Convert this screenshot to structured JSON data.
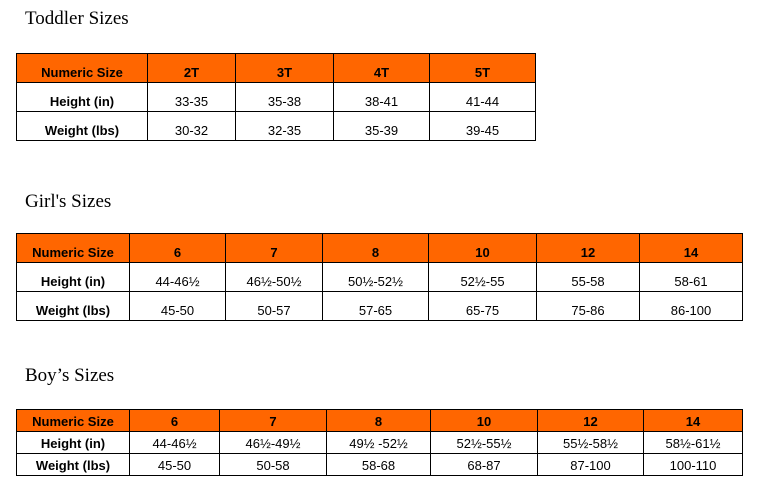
{
  "toddler": {
    "title": "Toddler Sizes",
    "header": [
      "Numeric Size",
      "2T",
      "3T",
      "4T",
      "5T"
    ],
    "height": [
      "Height (in)",
      "33-35",
      "35-38",
      "38-41",
      "41-44"
    ],
    "weight": [
      "Weight (lbs)",
      "30-32",
      "32-35",
      "35-39",
      "39-45"
    ]
  },
  "girls": {
    "title": "Girl's Sizes",
    "header": [
      "Numeric Size",
      "6",
      "7",
      "8",
      "10",
      "12",
      "14"
    ],
    "height": [
      "Height (in)",
      "44-46½",
      "46½-50½",
      "50½-52½",
      "52½-55",
      "55-58",
      "58-61"
    ],
    "weight": [
      "Weight (lbs)",
      "45-50",
      "50-57",
      "57-65",
      "65-75",
      "75-86",
      "86-100"
    ]
  },
  "boys": {
    "title": "Boy’s Sizes",
    "header": [
      "Numeric Size",
      "6",
      "7",
      "8",
      "10",
      "12",
      "14"
    ],
    "height": [
      "Height (in)",
      "44-46½",
      "46½-49½",
      "49½ -52½",
      "52½-55½",
      "55½-58½",
      "58½-61½"
    ],
    "weight": [
      "Weight (lbs)",
      "45-50",
      "50-58",
      "58-68",
      "68-87",
      "87-100",
      "100-110"
    ]
  },
  "colors": {
    "header_background": "#ff6600",
    "border": "#000000"
  }
}
